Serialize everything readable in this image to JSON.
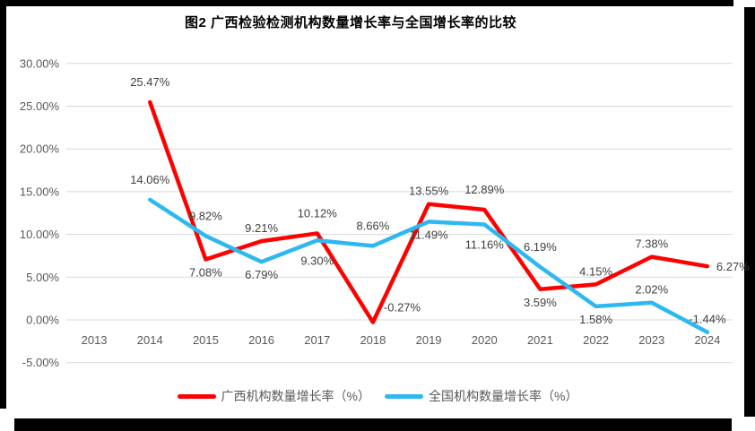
{
  "chart_data": {
    "type": "line",
    "title": "图2 广西检验检测机构数量增长率与全国增长率的比较",
    "categories": [
      "2013",
      "2014",
      "2015",
      "2016",
      "2017",
      "2018",
      "2019",
      "2020",
      "2021",
      "2022",
      "2023",
      "2024"
    ],
    "series": [
      {
        "name": "广西机构数量增长率（%）",
        "color": "#FF0000",
        "values": [
          null,
          25.47,
          7.08,
          9.21,
          10.12,
          -0.27,
          13.55,
          12.89,
          3.59,
          4.15,
          7.38,
          6.27
        ],
        "labels": [
          "",
          "25.47%",
          "7.08%",
          "9.21%",
          "10.12%",
          "-0.27%",
          "13.55%",
          "12.89%",
          "3.59%",
          "4.15%",
          "7.38%",
          "6.27%"
        ],
        "label_pos": [
          "",
          "A",
          "b",
          "a",
          "A",
          "ar",
          "a",
          "A",
          "b",
          "a",
          "a",
          "r"
        ]
      },
      {
        "name": "全国机构数量增长率（%）",
        "color": "#2EB8F0",
        "values": [
          null,
          14.06,
          9.82,
          6.79,
          9.3,
          8.66,
          11.49,
          11.16,
          6.19,
          1.58,
          2.02,
          -1.44
        ],
        "labels": [
          "",
          "14.06%",
          "9.82%",
          "6.79%",
          "9.30%",
          "8.66%",
          "11.49%",
          "11.16%",
          "6.19%",
          "1.58%",
          "2.02%",
          "-1.44%"
        ],
        "label_pos": [
          "",
          "A",
          "A",
          "b",
          "B",
          "A",
          "b",
          "B",
          "A",
          "b",
          "a",
          "a"
        ]
      }
    ],
    "y_axis": {
      "min": -5,
      "max": 30,
      "step": 5,
      "tick_labels": [
        "30.00%",
        "25.00%",
        "20.00%",
        "15.00%",
        "10.00%",
        "5.00%",
        "0.00%",
        "-5.00%"
      ]
    },
    "grid": true,
    "legend_position": "bottom",
    "colors": {
      "grid": "#D9D9D9",
      "axis_text": "#595959",
      "data_label": "#404040"
    }
  }
}
